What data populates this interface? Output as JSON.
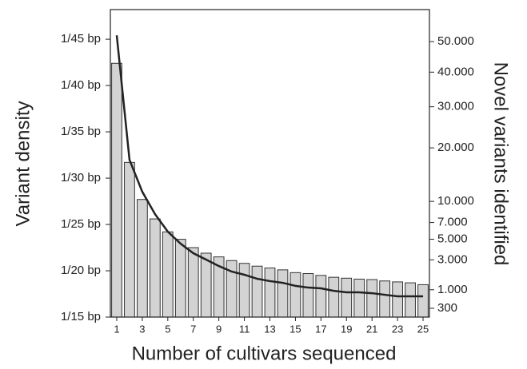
{
  "chart_data": {
    "type": "bar-line",
    "x": [
      1,
      2,
      3,
      4,
      5,
      6,
      7,
      8,
      9,
      10,
      11,
      12,
      13,
      14,
      15,
      16,
      17,
      18,
      19,
      20,
      21,
      22,
      23,
      24,
      25
    ],
    "xlim": [
      0.5,
      25.5
    ],
    "xticks": [
      1,
      3,
      5,
      7,
      9,
      11,
      13,
      15,
      17,
      19,
      21,
      23,
      25
    ],
    "xlabel": "Number of cultivars sequenced",
    "ylabel": "Variant density",
    "y2label": "Novel variants identified",
    "ylim": [
      15,
      48.2
    ],
    "yticks": [
      {
        "value": 15,
        "label": "1/15 bp"
      },
      {
        "value": 20,
        "label": "1/20 bp"
      },
      {
        "value": 25,
        "label": "1/25 bp"
      },
      {
        "value": 30,
        "label": "1/30 bp"
      },
      {
        "value": 35,
        "label": "1/35 bp"
      },
      {
        "value": 40,
        "label": "1/40 bp"
      },
      {
        "value": 45,
        "label": "1/45 bp"
      }
    ],
    "y2scale": "sqrt",
    "y2lim": [
      110,
      61700
    ],
    "y2ticks": [
      {
        "value": 300,
        "label": "300"
      },
      {
        "value": 1000,
        "label": "1.000"
      },
      {
        "value": 3000,
        "label": "3.000"
      },
      {
        "value": 5000,
        "label": "5.000"
      },
      {
        "value": 7000,
        "label": "7.000"
      },
      {
        "value": 10000,
        "label": "10.000"
      },
      {
        "value": 20000,
        "label": "20.000"
      },
      {
        "value": 30000,
        "label": "30.000"
      },
      {
        "value": 40000,
        "label": "40.000"
      },
      {
        "value": 50000,
        "label": "50.000"
      }
    ],
    "series": [
      {
        "kind": "bar",
        "color": "#d3d3d3",
        "values": [
          42.4,
          31.7,
          27.7,
          25.6,
          24.2,
          23.4,
          22.5,
          21.9,
          21.5,
          21.1,
          20.8,
          20.5,
          20.3,
          20.1,
          19.8,
          19.7,
          19.5,
          19.3,
          19.2,
          19.1,
          19.05,
          18.9,
          18.8,
          18.7,
          18.5
        ]
      },
      {
        "kind": "line",
        "axis": "y2",
        "color": "#222222",
        "values": [
          52200,
          17470,
          11550,
          8130,
          5870,
          4530,
          3590,
          3020,
          2500,
          2090,
          1870,
          1610,
          1470,
          1370,
          1200,
          1110,
          1070,
          950,
          880,
          880,
          840,
          770,
          705,
          705,
          705
        ]
      }
    ]
  }
}
